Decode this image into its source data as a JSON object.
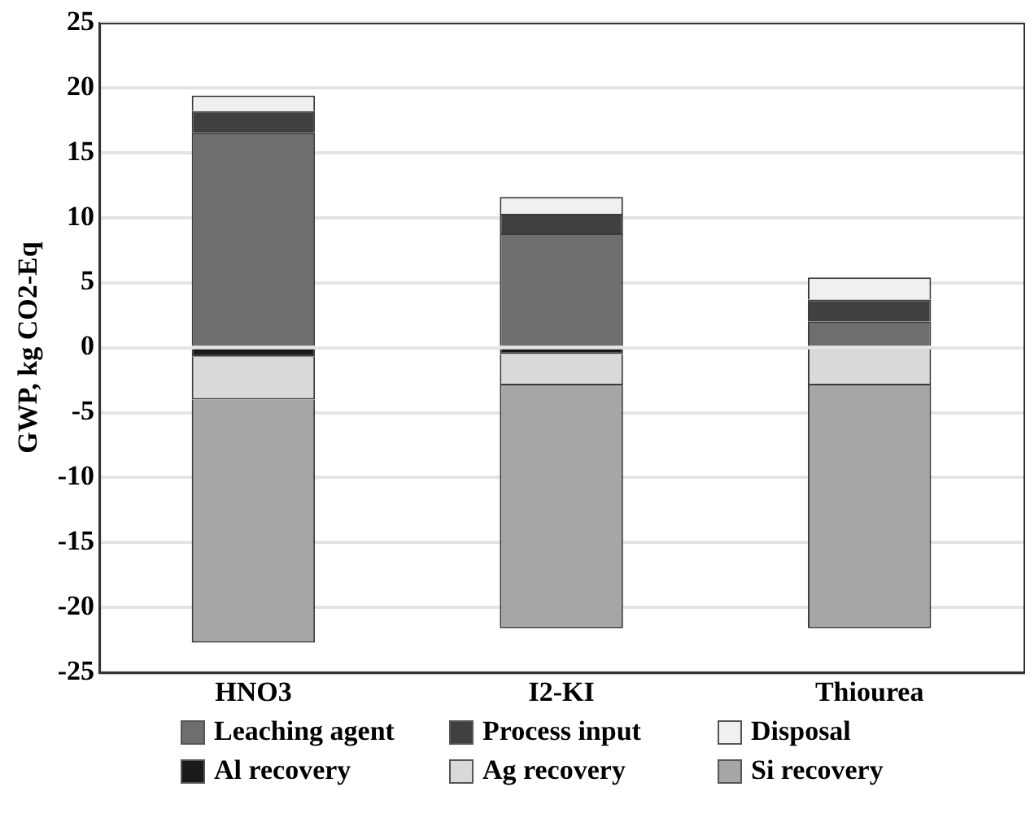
{
  "chart_data": {
    "type": "bar",
    "stacked": true,
    "ylabel": "GWP, kg CO2-Eq",
    "categories": [
      "HNO3",
      "I2-KI",
      "Thiourea"
    ],
    "series": [
      {
        "name": "Leaching agent",
        "color": "#6e6e6e",
        "values": [
          16.5,
          8.8,
          2.0
        ]
      },
      {
        "name": "Process input",
        "color": "#404040",
        "values": [
          1.7,
          1.5,
          1.7
        ]
      },
      {
        "name": "Disposal",
        "color": "#f0f0f0",
        "values": [
          1.2,
          1.3,
          1.7
        ]
      },
      {
        "name": "Al recovery",
        "color": "#1a1a1a",
        "values": [
          -0.7,
          -0.5,
          0
        ]
      },
      {
        "name": "Ag recovery",
        "color": "#d9d9d9",
        "values": [
          -3.3,
          -2.4,
          -2.9
        ]
      },
      {
        "name": "Si recovery",
        "color": "#a6a6a6",
        "values": [
          -18.7,
          -18.7,
          -18.7
        ]
      }
    ],
    "ylim": [
      -25,
      25
    ],
    "yticks": [
      -25,
      -20,
      -15,
      -10,
      -5,
      0,
      5,
      10,
      15,
      20,
      25
    ],
    "grid": "y",
    "legend": "bottom"
  }
}
